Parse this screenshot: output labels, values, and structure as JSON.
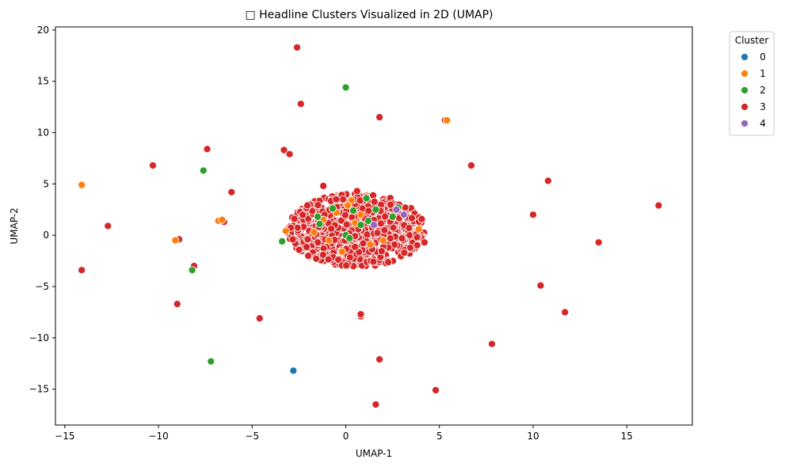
{
  "chart_data": {
    "type": "scatter",
    "title": "□ Headline Clusters Visualized in 2D (UMAP)",
    "xlabel": "UMAP-1",
    "ylabel": "UMAP-2",
    "xlim": [
      -15.5,
      18.5
    ],
    "ylim": [
      -18.5,
      20.3
    ],
    "x_ticks": [
      -15,
      -10,
      -5,
      0,
      5,
      10,
      15
    ],
    "y_ticks": [
      -15,
      -10,
      -5,
      0,
      5,
      10,
      15,
      20
    ],
    "x_tick_labels": [
      "−15",
      "−10",
      "−5",
      "0",
      "5",
      "10",
      "15"
    ],
    "y_tick_labels": [
      "−15",
      "−10",
      "−5",
      "0",
      "5",
      "10",
      "15",
      "20"
    ],
    "grid": false,
    "legend": {
      "title": "Cluster",
      "placement": "outside-top-right"
    },
    "series": [
      {
        "name": "0",
        "color": "#1f77b4",
        "points": [
          [
            -2.8,
            -13.2
          ]
        ]
      },
      {
        "name": "1",
        "color": "#ff7f0e",
        "points": [
          [
            -14.1,
            4.9
          ],
          [
            -6.8,
            1.4
          ],
          [
            -6.6,
            1.5
          ],
          [
            -9.1,
            -0.5
          ],
          [
            5.4,
            11.2
          ],
          [
            -3.2,
            0.4
          ],
          [
            -1.7,
            0.3
          ],
          [
            -0.9,
            -0.5
          ],
          [
            0.3,
            3.4
          ],
          [
            0.8,
            2.0
          ],
          [
            2.0,
            -0.5
          ],
          [
            -0.2,
            -1.6
          ],
          [
            0.5,
            1.2
          ],
          [
            3.9,
            0.6
          ],
          [
            -0.5,
            2.2
          ],
          [
            1.3,
            -0.9
          ],
          [
            0.1,
            2.9
          ],
          [
            -1.2,
            1.5
          ]
        ]
      },
      {
        "name": "2",
        "color": "#2ca02c",
        "points": [
          [
            0.0,
            14.4
          ],
          [
            -7.6,
            6.3
          ],
          [
            -8.2,
            -3.4
          ],
          [
            -7.2,
            -12.3
          ],
          [
            -3.4,
            -0.6
          ],
          [
            -1.5,
            1.8
          ],
          [
            -1.4,
            1.1
          ],
          [
            0.0,
            0.0
          ],
          [
            0.4,
            2.4
          ],
          [
            1.1,
            3.6
          ],
          [
            1.2,
            1.4
          ],
          [
            2.5,
            1.8
          ],
          [
            0.8,
            1.0
          ],
          [
            2.8,
            2.7
          ],
          [
            -0.7,
            2.6
          ],
          [
            1.6,
            2.5
          ],
          [
            0.2,
            -0.3
          ]
        ]
      },
      {
        "name": "3",
        "color": "#d62728",
        "points": [
          [
            -2.6,
            18.3
          ],
          [
            -2.4,
            12.8
          ],
          [
            1.8,
            11.5
          ],
          [
            -7.4,
            8.4
          ],
          [
            -10.3,
            6.8
          ],
          [
            -3.3,
            8.3
          ],
          [
            -3.0,
            7.9
          ],
          [
            -6.1,
            4.2
          ],
          [
            -12.7,
            0.9
          ],
          [
            -6.5,
            1.3
          ],
          [
            -8.9,
            -0.4
          ],
          [
            -14.1,
            -3.4
          ],
          [
            -8.1,
            -3.0
          ],
          [
            -9.0,
            -6.7
          ],
          [
            -4.6,
            -8.1
          ],
          [
            0.8,
            -7.9
          ],
          [
            0.8,
            -7.7
          ],
          [
            1.8,
            -12.1
          ],
          [
            1.6,
            -16.5
          ],
          [
            4.8,
            -15.1
          ],
          [
            7.8,
            -10.6
          ],
          [
            11.7,
            -7.5
          ],
          [
            10.4,
            -4.9
          ],
          [
            13.5,
            -0.7
          ],
          [
            10.0,
            2.0
          ],
          [
            10.8,
            5.3
          ],
          [
            6.7,
            6.8
          ],
          [
            16.7,
            2.9
          ],
          [
            5.3,
            11.2
          ],
          [
            4.2,
            -0.7
          ],
          [
            3.8,
            -0.2
          ],
          [
            -1.2,
            4.8
          ],
          [
            0.6,
            4.3
          ]
        ]
      },
      {
        "name": "4",
        "color": "#9467bd",
        "points": [
          [
            1.5,
            1.0
          ],
          [
            2.7,
            2.5
          ],
          [
            3.1,
            2.0
          ]
        ]
      }
    ],
    "dense_cluster": {
      "series": "3",
      "center": [
        0.55,
        0.5
      ],
      "radius_x": 3.7,
      "radius_y": 3.6,
      "count": 900
    }
  }
}
